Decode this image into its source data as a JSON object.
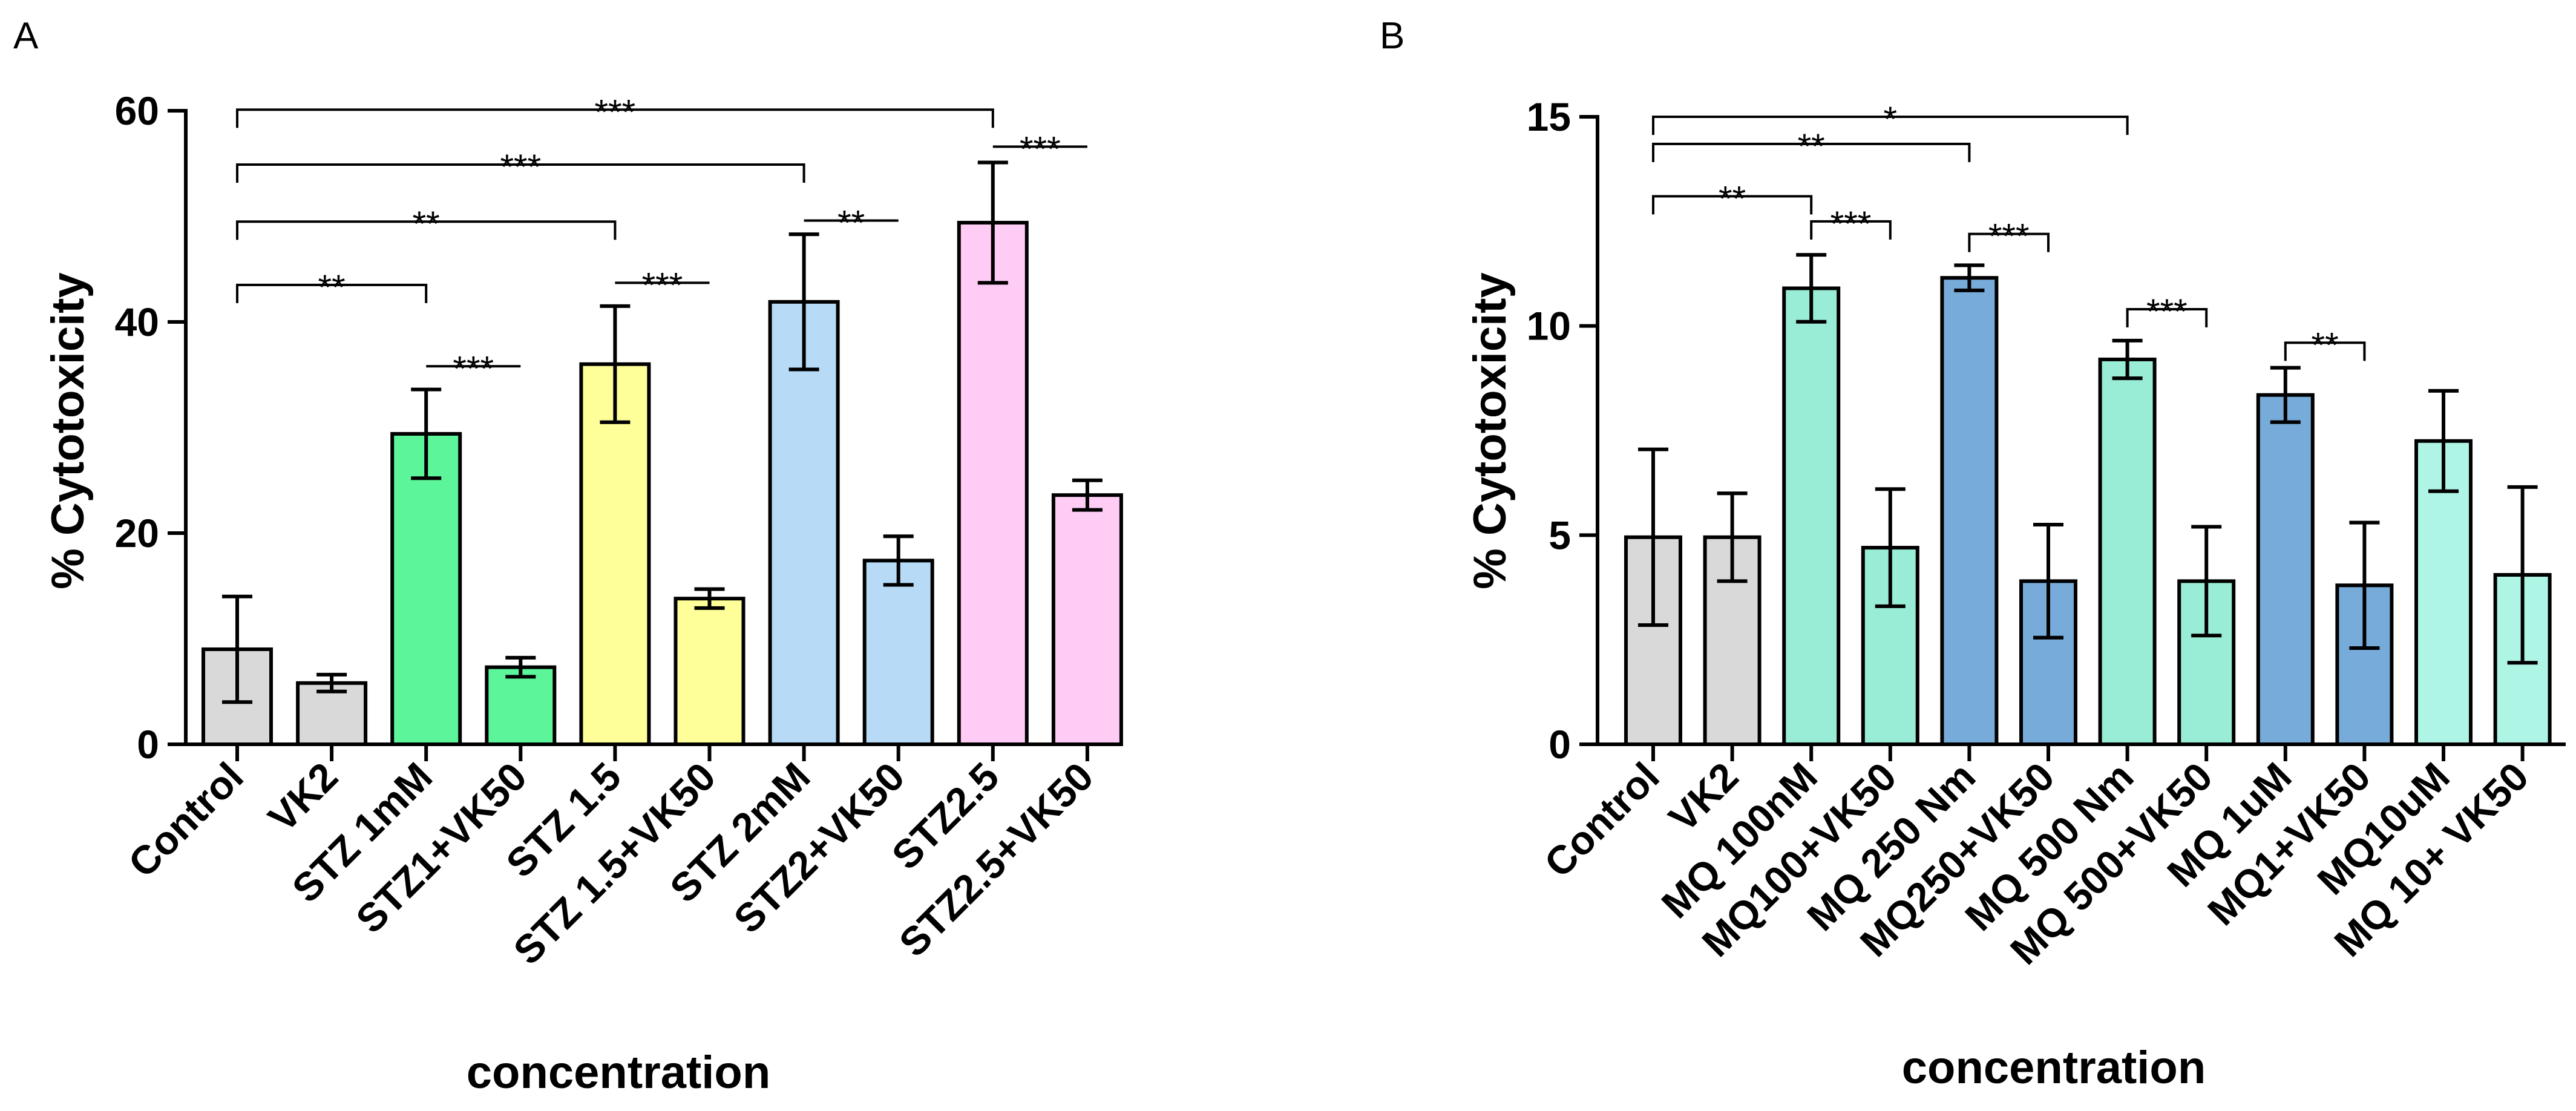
{
  "chart_data": [
    {
      "type": "bar",
      "panel_label": "A",
      "title": "",
      "xlabel": "concentration",
      "ylabel": "% Cytotoxicity",
      "ylim": [
        0,
        60
      ],
      "yticks": [
        0,
        20,
        40,
        60
      ],
      "grid": false,
      "categories": [
        "Control",
        "VK2",
        "STZ 1mM",
        "STZ1+VK50",
        "STZ 1.5",
        "STZ 1.5+VK50",
        "STZ 2mM",
        "STZ2+VK50",
        "STZ2.5",
        "STZ2.5+VK50"
      ],
      "values": [
        9.0,
        5.8,
        29.4,
        7.3,
        36.0,
        13.8,
        41.9,
        17.4,
        49.4,
        23.6
      ],
      "errors": [
        5.0,
        0.8,
        4.2,
        0.9,
        5.5,
        0.9,
        6.4,
        2.3,
        5.7,
        1.4
      ],
      "colors": [
        "#d9d9d9",
        "#d9d9d9",
        "#5cf59a",
        "#5cf59a",
        "#ffff99",
        "#ffff99",
        "#b7dbf7",
        "#b7dbf7",
        "#ffccf5",
        "#ffccf5"
      ],
      "annotations": [
        {
          "from": 0,
          "to": 8,
          "label": "***",
          "level": 60.1,
          "type": "bracket"
        },
        {
          "from": 8,
          "to": 9,
          "label": "***",
          "level": 56.6,
          "type": "line"
        },
        {
          "from": 0,
          "to": 6,
          "label": "***",
          "level": 54.9,
          "type": "bracket"
        },
        {
          "from": 0,
          "to": 4,
          "label": "**",
          "level": 49.5,
          "type": "bracket"
        },
        {
          "from": 6,
          "to": 7,
          "label": "**",
          "level": 49.6,
          "type": "line"
        },
        {
          "from": 0,
          "to": 2,
          "label": "**",
          "level": 43.5,
          "type": "bracket"
        },
        {
          "from": 4,
          "to": 5,
          "label": "***",
          "level": 43.7,
          "type": "line"
        },
        {
          "from": 2,
          "to": 3,
          "label": "***",
          "level": 35.8,
          "type": "line"
        }
      ]
    },
    {
      "type": "bar",
      "panel_label": "B",
      "title": "",
      "xlabel": "concentration",
      "ylabel": "% Cytotoxicity",
      "ylim": [
        0,
        15
      ],
      "yticks": [
        0,
        5,
        10,
        15
      ],
      "grid": false,
      "categories": [
        "Control",
        "VK2",
        "MQ 100nM",
        "MQ100+VK50",
        "MQ 250 Nm",
        "MQ250+VK50",
        "MQ 500 Nm",
        "MQ 500+VK50",
        "MQ 1uM",
        "MQ1+VK50",
        "MQ10uM",
        "MQ 10+ VK50"
      ],
      "values": [
        4.95,
        4.95,
        10.9,
        4.7,
        11.15,
        3.9,
        9.2,
        3.9,
        8.35,
        3.8,
        7.25,
        4.05
      ],
      "errors": [
        2.1,
        1.05,
        0.8,
        1.4,
        0.3,
        1.35,
        0.45,
        1.3,
        0.65,
        1.5,
        1.2,
        2.1
      ],
      "colors": [
        "#d9d9d9",
        "#d9d9d9",
        "#99ecd6",
        "#99ecd6",
        "#77abd9",
        "#77abd9",
        "#99ecd6",
        "#99ecd6",
        "#77abd9",
        "#77abd9",
        "#aff5e6",
        "#aff5e6"
      ],
      "annotations": [
        {
          "from": 0,
          "to": 6,
          "label": "*",
          "level": 15.0,
          "type": "bracket"
        },
        {
          "from": 0,
          "to": 4,
          "label": "**",
          "level": 14.35,
          "type": "bracket"
        },
        {
          "from": 0,
          "to": 2,
          "label": "**",
          "level": 13.1,
          "type": "bracket"
        },
        {
          "from": 2,
          "to": 3,
          "label": "***",
          "level": 12.5,
          "type": "bracket"
        },
        {
          "from": 4,
          "to": 5,
          "label": "***",
          "level": 12.2,
          "type": "bracket"
        },
        {
          "from": 6,
          "to": 7,
          "label": "***",
          "level": 10.4,
          "type": "bracket"
        },
        {
          "from": 8,
          "to": 9,
          "label": "**",
          "level": 9.6,
          "type": "bracket"
        }
      ]
    }
  ]
}
